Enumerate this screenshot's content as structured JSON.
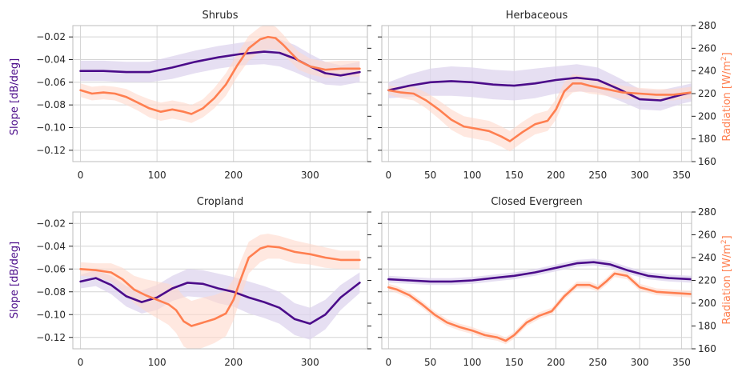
{
  "colors": {
    "slope": "#4b0c8a",
    "slope_band": "#ddd4ee",
    "radiation": "#ff7f50",
    "radiation_band": "#ffd9cc",
    "grid": "#d4d4d4",
    "spine": "#bdbdbd",
    "background": "#ffffff"
  },
  "axis_labels": {
    "left": "Slope [dB/deg]",
    "right_prefix": "Radiation [W/m",
    "right_sup": "2",
    "right_suffix": "]"
  },
  "chart_data": [
    {
      "type": "line",
      "title": "Shrubs",
      "xlim": [
        -10,
        375
      ],
      "xticks": [
        0,
        100,
        200,
        300
      ],
      "left_ylim": [
        -0.13,
        -0.01
      ],
      "left_yticks": [
        -0.12,
        -0.1,
        -0.08,
        -0.06,
        -0.04,
        -0.02
      ],
      "left_ytick_labels": [
        "−0.12",
        "−0.10",
        "−0.08",
        "−0.06",
        "−0.04",
        "−0.02"
      ],
      "right_ylim": [
        160,
        280
      ],
      "right_yticks": [
        160,
        180,
        200,
        220,
        240,
        260,
        280
      ],
      "show_left_labels": true,
      "show_right_labels": false,
      "series": [
        {
          "axis": "left",
          "x": [
            0,
            30,
            60,
            90,
            120,
            150,
            180,
            210,
            240,
            260,
            280,
            300,
            320,
            340,
            365
          ],
          "y": [
            -0.05,
            -0.05,
            -0.051,
            -0.051,
            -0.047,
            -0.042,
            -0.038,
            -0.035,
            -0.033,
            -0.034,
            -0.039,
            -0.046,
            -0.052,
            -0.054,
            -0.051
          ],
          "band": [
            0.009,
            0.009,
            0.009,
            0.009,
            0.01,
            0.01,
            0.01,
            0.01,
            0.011,
            0.012,
            0.012,
            0.011,
            0.01,
            0.009,
            0.009
          ]
        },
        {
          "axis": "right",
          "x": [
            0,
            15,
            30,
            45,
            60,
            75,
            90,
            105,
            120,
            135,
            145,
            160,
            175,
            190,
            205,
            220,
            235,
            245,
            255,
            265,
            275,
            285,
            300,
            320,
            340,
            365
          ],
          "y": [
            223,
            220,
            221,
            220,
            217,
            212,
            207,
            204,
            206,
            204,
            202,
            207,
            216,
            228,
            245,
            260,
            268,
            270,
            269,
            263,
            256,
            249,
            244,
            241,
            242,
            242
          ],
          "band": [
            6,
            6,
            6,
            6,
            7,
            7,
            8,
            8,
            8,
            8,
            8,
            8,
            9,
            10,
            10,
            11,
            11,
            11,
            10,
            9,
            8,
            8,
            7,
            7,
            7,
            7
          ]
        }
      ]
    },
    {
      "type": "line",
      "title": "Herbaceous",
      "xlim": [
        -8,
        362
      ],
      "xticks": [
        0,
        50,
        100,
        150,
        200,
        250,
        300,
        350
      ],
      "left_ylim": [
        -0.13,
        -0.01
      ],
      "left_yticks": [
        -0.12,
        -0.1,
        -0.08,
        -0.06,
        -0.04,
        -0.02
      ],
      "right_ylim": [
        160,
        280
      ],
      "right_yticks": [
        160,
        180,
        200,
        220,
        240,
        260,
        280
      ],
      "right_ytick_labels": [
        "160",
        "180",
        "200",
        "220",
        "240",
        "260",
        "280"
      ],
      "show_left_labels": false,
      "show_right_labels": true,
      "series": [
        {
          "axis": "left",
          "x": [
            0,
            25,
            50,
            75,
            100,
            125,
            150,
            175,
            200,
            225,
            250,
            275,
            300,
            325,
            350,
            362
          ],
          "y": [
            -0.067,
            -0.063,
            -0.06,
            -0.059,
            -0.06,
            -0.062,
            -0.063,
            -0.061,
            -0.058,
            -0.056,
            -0.058,
            -0.066,
            -0.075,
            -0.076,
            -0.071,
            -0.069
          ],
          "band": [
            0.007,
            0.01,
            0.012,
            0.013,
            0.013,
            0.013,
            0.013,
            0.013,
            0.012,
            0.012,
            0.011,
            0.01,
            0.009,
            0.009,
            0.008,
            0.008
          ]
        },
        {
          "axis": "right",
          "x": [
            0,
            15,
            30,
            45,
            60,
            75,
            90,
            105,
            120,
            135,
            145,
            160,
            175,
            190,
            200,
            210,
            220,
            230,
            240,
            260,
            280,
            300,
            320,
            340,
            362
          ],
          "y": [
            223,
            221,
            220,
            214,
            206,
            197,
            191,
            189,
            187,
            182,
            178,
            186,
            193,
            196,
            206,
            222,
            229,
            229,
            227,
            224,
            221,
            220,
            219,
            219,
            221
          ],
          "band": [
            4,
            5,
            6,
            7,
            8,
            9,
            9,
            9,
            9,
            9,
            9,
            9,
            9,
            9,
            9,
            8,
            8,
            7,
            7,
            6,
            6,
            5,
            5,
            5,
            5
          ]
        }
      ]
    },
    {
      "type": "line",
      "title": "Cropland",
      "xlim": [
        -10,
        375
      ],
      "xticks": [
        0,
        100,
        200,
        300
      ],
      "left_ylim": [
        -0.13,
        -0.01
      ],
      "left_yticks": [
        -0.12,
        -0.1,
        -0.08,
        -0.06,
        -0.04,
        -0.02
      ],
      "left_ytick_labels": [
        "−0.12",
        "−0.10",
        "−0.08",
        "−0.06",
        "−0.04",
        "−0.02"
      ],
      "right_ylim": [
        160,
        280
      ],
      "right_yticks": [
        160,
        180,
        200,
        220,
        240,
        260,
        280
      ],
      "show_left_labels": true,
      "show_right_labels": false,
      "series": [
        {
          "axis": "left",
          "x": [
            0,
            20,
            40,
            60,
            80,
            100,
            120,
            140,
            160,
            180,
            200,
            220,
            240,
            260,
            280,
            300,
            320,
            340,
            365
          ],
          "y": [
            -0.071,
            -0.068,
            -0.074,
            -0.084,
            -0.089,
            -0.085,
            -0.077,
            -0.072,
            -0.073,
            -0.077,
            -0.08,
            -0.085,
            -0.089,
            -0.094,
            -0.104,
            -0.108,
            -0.1,
            -0.085,
            -0.072
          ],
          "band": [
            0.006,
            0.007,
            0.008,
            0.009,
            0.01,
            0.011,
            0.011,
            0.012,
            0.012,
            0.013,
            0.013,
            0.014,
            0.014,
            0.014,
            0.014,
            0.014,
            0.013,
            0.011,
            0.009
          ]
        },
        {
          "axis": "right",
          "x": [
            0,
            20,
            40,
            55,
            70,
            85,
            100,
            115,
            125,
            135,
            145,
            160,
            175,
            190,
            200,
            210,
            220,
            235,
            245,
            260,
            280,
            300,
            320,
            340,
            365
          ],
          "y": [
            230,
            229,
            227,
            221,
            212,
            207,
            203,
            199,
            194,
            184,
            180,
            183,
            186,
            191,
            203,
            222,
            240,
            248,
            250,
            249,
            245,
            243,
            240,
            238,
            238
          ],
          "band": [
            6,
            6,
            8,
            10,
            12,
            14,
            16,
            18,
            20,
            22,
            22,
            22,
            21,
            20,
            18,
            16,
            14,
            12,
            11,
            10,
            10,
            9,
            9,
            8,
            8
          ]
        }
      ]
    },
    {
      "type": "line",
      "title": "Closed Evergreen",
      "xlim": [
        -8,
        362
      ],
      "xticks": [
        0,
        50,
        100,
        150,
        200,
        250,
        300,
        350
      ],
      "left_ylim": [
        -0.13,
        -0.01
      ],
      "left_yticks": [
        -0.12,
        -0.1,
        -0.08,
        -0.06,
        -0.04,
        -0.02
      ],
      "right_ylim": [
        160,
        280
      ],
      "right_yticks": [
        160,
        180,
        200,
        220,
        240,
        260,
        280
      ],
      "right_ytick_labels": [
        "160",
        "180",
        "200",
        "220",
        "240",
        "260",
        "280"
      ],
      "show_left_labels": false,
      "show_right_labels": true,
      "series": [
        {
          "axis": "left",
          "x": [
            0,
            25,
            50,
            75,
            100,
            125,
            150,
            175,
            200,
            225,
            245,
            265,
            285,
            310,
            335,
            362
          ],
          "y": [
            -0.069,
            -0.07,
            -0.071,
            -0.071,
            -0.07,
            -0.068,
            -0.066,
            -0.063,
            -0.059,
            -0.055,
            -0.054,
            -0.056,
            -0.061,
            -0.066,
            -0.068,
            -0.069
          ],
          "band": [
            0.003,
            0.003,
            0.003,
            0.003,
            0.003,
            0.003,
            0.003,
            0.003,
            0.003,
            0.003,
            0.003,
            0.003,
            0.003,
            0.003,
            0.003,
            0.003
          ]
        },
        {
          "axis": "right",
          "x": [
            0,
            10,
            25,
            40,
            55,
            70,
            85,
            100,
            115,
            130,
            140,
            150,
            165,
            180,
            195,
            210,
            225,
            240,
            250,
            260,
            270,
            285,
            300,
            320,
            340,
            362
          ],
          "y": [
            214,
            212,
            207,
            199,
            190,
            183,
            179,
            176,
            172,
            170,
            167,
            172,
            183,
            189,
            193,
            206,
            216,
            216,
            213,
            219,
            226,
            224,
            214,
            210,
            209,
            208
          ],
          "band": [
            3,
            3,
            3,
            3,
            3,
            3,
            3,
            3,
            3,
            3,
            3,
            3,
            3,
            3,
            3,
            3,
            3,
            3,
            3,
            3,
            3,
            3,
            3,
            3,
            3,
            3
          ]
        }
      ]
    }
  ]
}
